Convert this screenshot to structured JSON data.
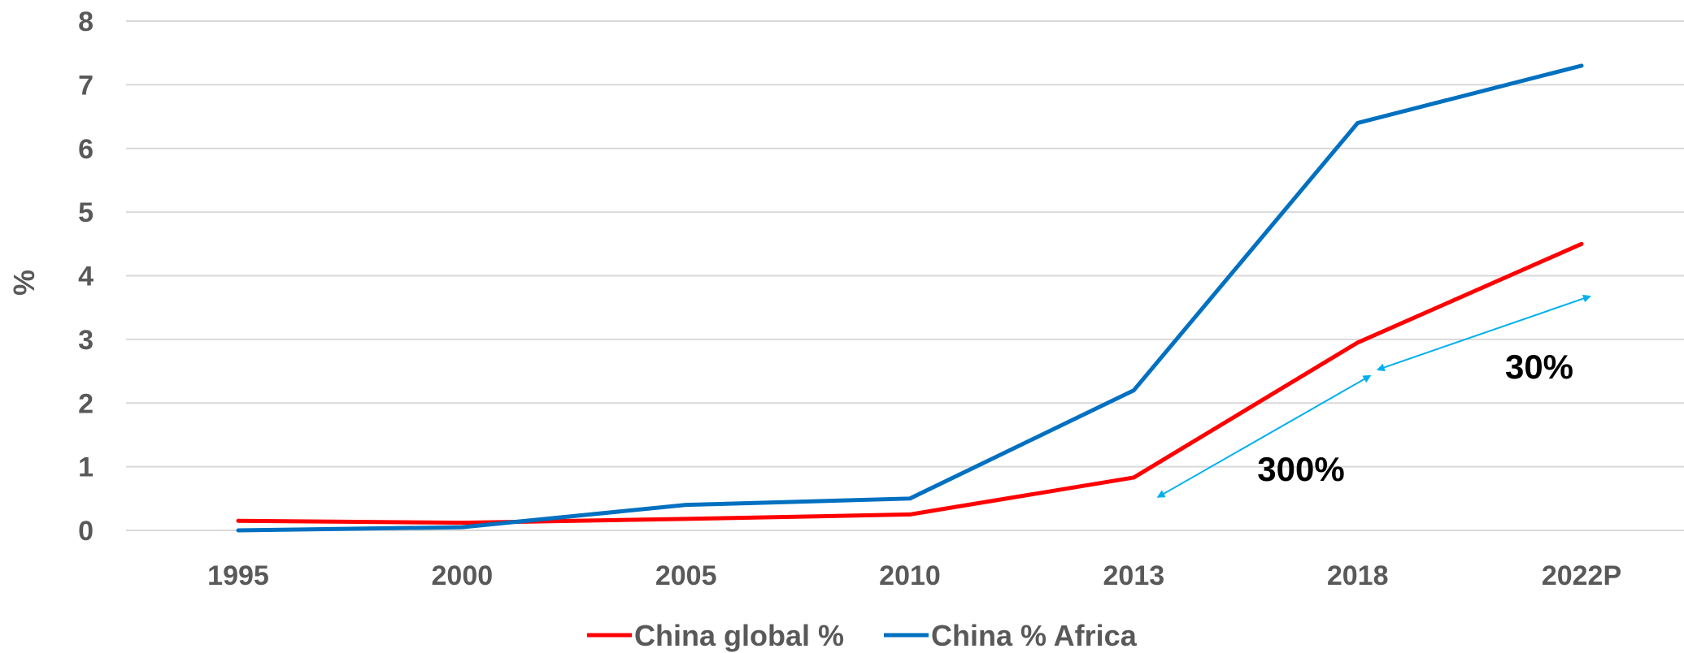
{
  "chart_data": {
    "type": "line",
    "title": "",
    "xlabel": "",
    "ylabel": "%",
    "ylim": [
      0,
      8
    ],
    "yticks": [
      0,
      1,
      2,
      3,
      4,
      5,
      6,
      7,
      8
    ],
    "grid": true,
    "legend": "bottom",
    "categories": [
      "1995",
      "2000",
      "2005",
      "2010",
      "2013",
      "2018",
      "2022P"
    ],
    "series": [
      {
        "name": "China global %",
        "color": "#ff0000",
        "values": [
          0.15,
          0.12,
          0.18,
          0.25,
          0.83,
          2.95,
          4.5
        ]
      },
      {
        "name": "China % Africa",
        "color": "#0070c0",
        "values": [
          0.0,
          0.05,
          0.4,
          0.5,
          2.2,
          6.4,
          7.3
        ]
      }
    ],
    "annotations": [
      {
        "text": "300%",
        "color": "#00b0f0",
        "from": {
          "x": "2013",
          "y": 0.5
        },
        "to": {
          "x": "2018",
          "y": 2.4
        }
      },
      {
        "text": "30%",
        "color": "#00b0f0",
        "from": {
          "x": "2018",
          "y": 2.5
        },
        "to": {
          "x": "2022P",
          "y": 3.65
        }
      }
    ]
  }
}
